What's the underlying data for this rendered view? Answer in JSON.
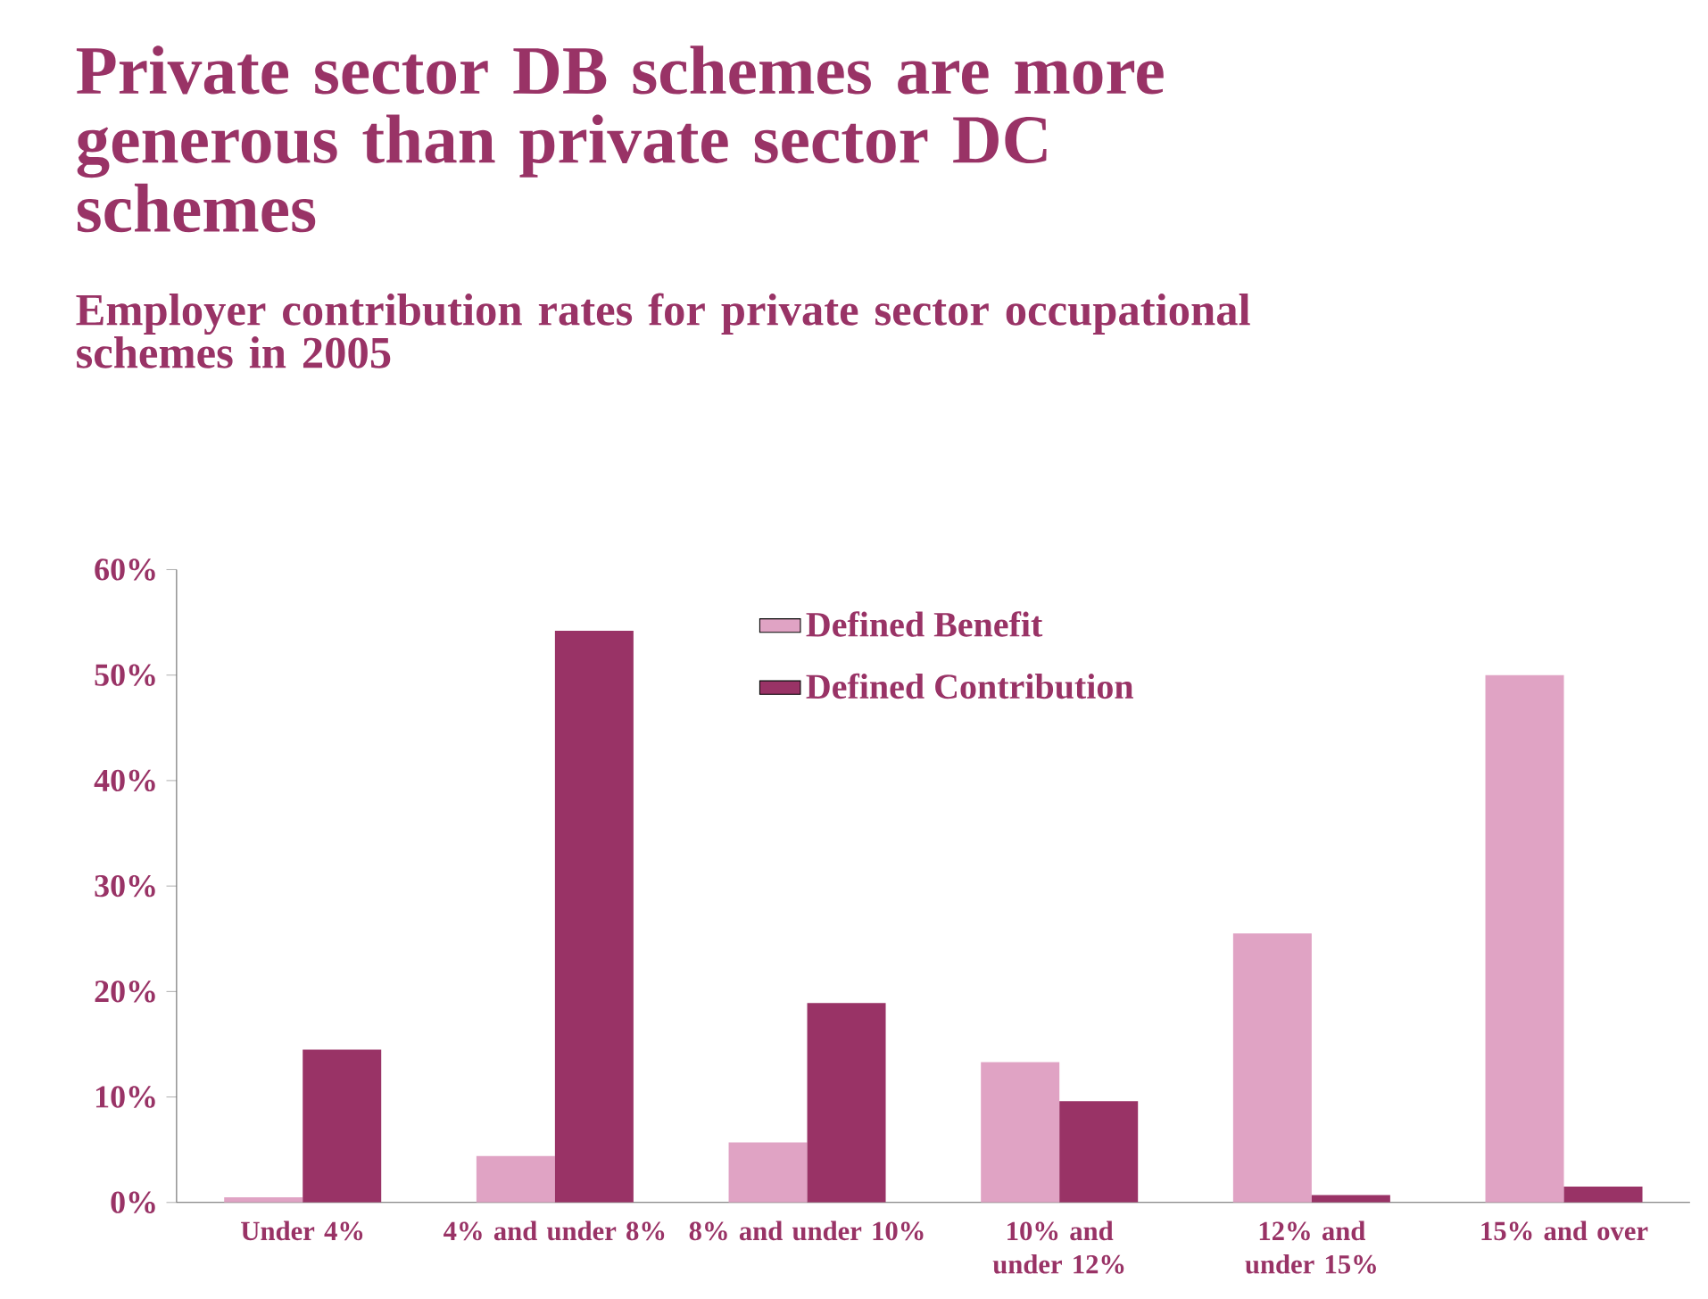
{
  "chart_data": {
    "type": "bar",
    "title": "Private sector DB schemes are more generous than private sector DC schemes",
    "subtitle": "Employer contribution rates for private sector occupational schemes in 2005",
    "categories": [
      "Under 4%",
      "4% and under 8%",
      "8% and under 10%",
      "10% and under 12%",
      "12% and under 15%",
      "15% and over"
    ],
    "series": [
      {
        "name": "Defined Benefit",
        "color": "#e0a3c4",
        "values": [
          0.5,
          4.4,
          5.7,
          13.3,
          25.5,
          50.0
        ]
      },
      {
        "name": "Defined Contribution",
        "color": "#993366",
        "values": [
          14.5,
          54.2,
          18.9,
          9.6,
          0.7,
          1.5
        ]
      }
    ],
    "ylim": [
      0,
      60
    ],
    "yticks": [
      {
        "value": 0,
        "label": "0%"
      },
      {
        "value": 10,
        "label": "10%"
      },
      {
        "value": 20,
        "label": "20%"
      },
      {
        "value": 30,
        "label": "30%"
      },
      {
        "value": 40,
        "label": "40%"
      },
      {
        "value": 50,
        "label": "50%"
      },
      {
        "value": 60,
        "label": "60%"
      }
    ],
    "legend": "top",
    "grid": false
  }
}
